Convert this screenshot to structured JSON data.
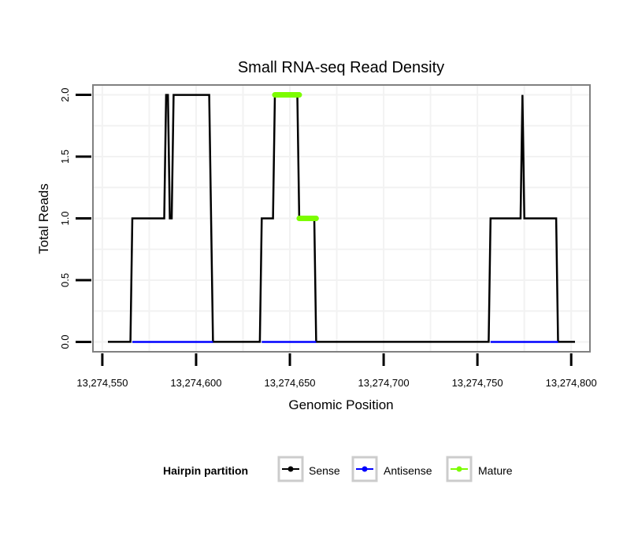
{
  "chart_data": {
    "type": "line",
    "title": "Small RNA-seq Read Density",
    "xlabel": "Genomic Position",
    "ylabel": "Total Reads",
    "xlim": [
      13274545,
      13274810
    ],
    "ylim": [
      -0.08,
      2.08
    ],
    "x_ticks": [
      13274550,
      13274600,
      13274650,
      13274700,
      13274750,
      13274800
    ],
    "x_tick_labels": [
      "13,274,550",
      "13,274,600",
      "13,274,650",
      "13,274,700",
      "13,274,750",
      "13,274,800"
    ],
    "y_ticks": [
      0,
      0.5,
      1,
      1.5,
      2
    ],
    "y_tick_labels": [
      "0.0",
      "0.5",
      "1.0",
      "1.5",
      "2.0"
    ],
    "grid": true,
    "legend": {
      "title": "Hairpin partition",
      "placement": "bottom",
      "entries": [
        {
          "name": "Sense",
          "color": "#000000"
        },
        {
          "name": "Antisense",
          "color": "#0000ff"
        },
        {
          "name": "Mature",
          "color": "#7cfc00"
        }
      ]
    },
    "series": [
      {
        "name": "Sense",
        "color": "#000000",
        "points": [
          [
            13274553,
            0
          ],
          [
            13274565,
            0
          ],
          [
            13274566,
            1
          ],
          [
            13274583,
            1
          ],
          [
            13274584,
            2
          ],
          [
            13274585,
            2
          ],
          [
            13274586,
            1
          ],
          [
            13274587,
            1
          ],
          [
            13274588,
            2
          ],
          [
            13274607,
            2
          ],
          [
            13274609,
            0
          ],
          [
            13274634,
            0
          ],
          [
            13274635,
            1
          ],
          [
            13274641,
            1
          ],
          [
            13274642,
            2
          ],
          [
            13274654,
            2
          ],
          [
            13274655,
            1
          ],
          [
            13274663,
            1
          ],
          [
            13274664,
            0
          ],
          [
            13274756,
            0
          ],
          [
            13274757,
            1
          ],
          [
            13274773,
            1
          ],
          [
            13274774,
            2
          ],
          [
            13274775,
            1
          ],
          [
            13274792,
            1
          ],
          [
            13274793,
            0
          ],
          [
            13274802,
            0
          ]
        ]
      },
      {
        "name": "Antisense",
        "color": "#0000ff",
        "segments": [
          [
            [
              13274566,
              0
            ],
            [
              13274609,
              0
            ]
          ],
          [
            [
              13274635,
              0
            ],
            [
              13274664,
              0
            ]
          ],
          [
            [
              13274757,
              0
            ],
            [
              13274793,
              0
            ]
          ]
        ]
      },
      {
        "name": "Mature",
        "color": "#7cfc00",
        "segments": [
          [
            [
              13274642,
              2
            ],
            [
              13274655,
              2
            ]
          ],
          [
            [
              13274655,
              1
            ],
            [
              13274664,
              1
            ]
          ]
        ]
      }
    ]
  }
}
